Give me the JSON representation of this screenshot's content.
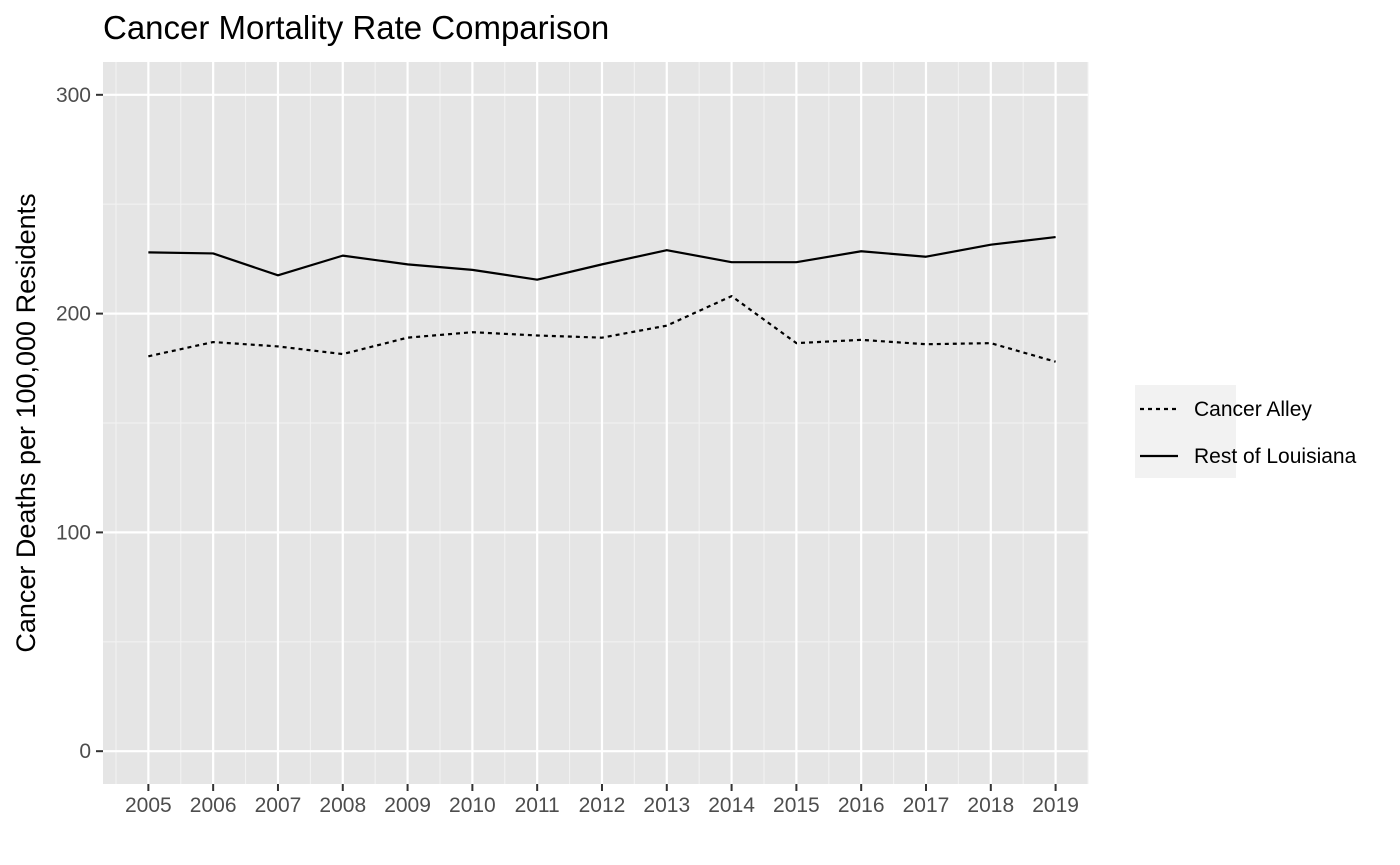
{
  "chart_data": {
    "type": "line",
    "title": "Cancer Mortality Rate Comparison",
    "xlabel": "",
    "ylabel": "Cancer Deaths per 100,000 Residents",
    "x": [
      2005,
      2006,
      2007,
      2008,
      2009,
      2010,
      2011,
      2012,
      2013,
      2014,
      2015,
      2016,
      2017,
      2018,
      2019
    ],
    "xlim": [
      2004.3,
      2019.5
    ],
    "ylim": [
      -15,
      315
    ],
    "yticks": [
      0,
      100,
      200,
      300
    ],
    "grid": true,
    "background": "#e5e5e5",
    "legend_position": "right",
    "series": [
      {
        "name": "Cancer Alley",
        "line_style": "dotted",
        "color": "#000000",
        "values": [
          180.5,
          187,
          185,
          181.5,
          189,
          191.5,
          190,
          189,
          194.5,
          208,
          186.5,
          188,
          186,
          186.5,
          178
        ]
      },
      {
        "name": "Rest of Louisiana",
        "line_style": "solid",
        "color": "#000000",
        "values": [
          228,
          227.5,
          217.5,
          226.5,
          222.5,
          220,
          215.5,
          222.5,
          229,
          223.5,
          223.5,
          228.5,
          226,
          231.5,
          235
        ]
      }
    ]
  }
}
